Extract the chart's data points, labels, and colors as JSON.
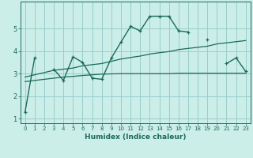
{
  "xlabel": "Humidex (Indice chaleur)",
  "background_color": "#cceee8",
  "grid_color": "#99cccc",
  "line_color": "#1a6b5a",
  "x": [
    0,
    1,
    2,
    3,
    4,
    5,
    6,
    7,
    8,
    9,
    10,
    11,
    12,
    13,
    14,
    15,
    16,
    17,
    18,
    19,
    20,
    21,
    22,
    23
  ],
  "series1": [
    1.3,
    3.7,
    null,
    3.2,
    2.7,
    3.75,
    3.5,
    2.8,
    2.75,
    3.7,
    4.4,
    5.1,
    4.9,
    5.55,
    5.55,
    5.55,
    4.9,
    4.85,
    null,
    4.5,
    null,
    3.45,
    3.7,
    3.1
  ],
  "line_trend1": [
    2.85,
    2.95,
    3.05,
    3.15,
    3.2,
    3.25,
    3.35,
    3.4,
    3.45,
    3.55,
    3.65,
    3.72,
    3.78,
    3.87,
    3.93,
    3.98,
    4.07,
    4.12,
    4.17,
    4.22,
    4.32,
    4.37,
    4.42,
    4.47
  ],
  "line_trend2": [
    2.65,
    2.7,
    2.75,
    2.8,
    2.85,
    2.88,
    2.92,
    2.95,
    2.98,
    2.99,
    3.0,
    3.0,
    3.0,
    3.0,
    3.0,
    3.0,
    3.02,
    3.02,
    3.02,
    3.02,
    3.02,
    3.02,
    3.02,
    3.02
  ],
  "ylim": [
    0.8,
    6.2
  ],
  "xlim": [
    -0.5,
    23.5
  ],
  "yticks": [
    1,
    2,
    3,
    4,
    5
  ],
  "xtick_labels": [
    "0",
    "1",
    "2",
    "3",
    "4",
    "5",
    "6",
    "7",
    "8",
    "9",
    "10",
    "11",
    "12",
    "13",
    "14",
    "15",
    "16",
    "17",
    "18",
    "19",
    "20",
    "21",
    "22",
    "23"
  ]
}
